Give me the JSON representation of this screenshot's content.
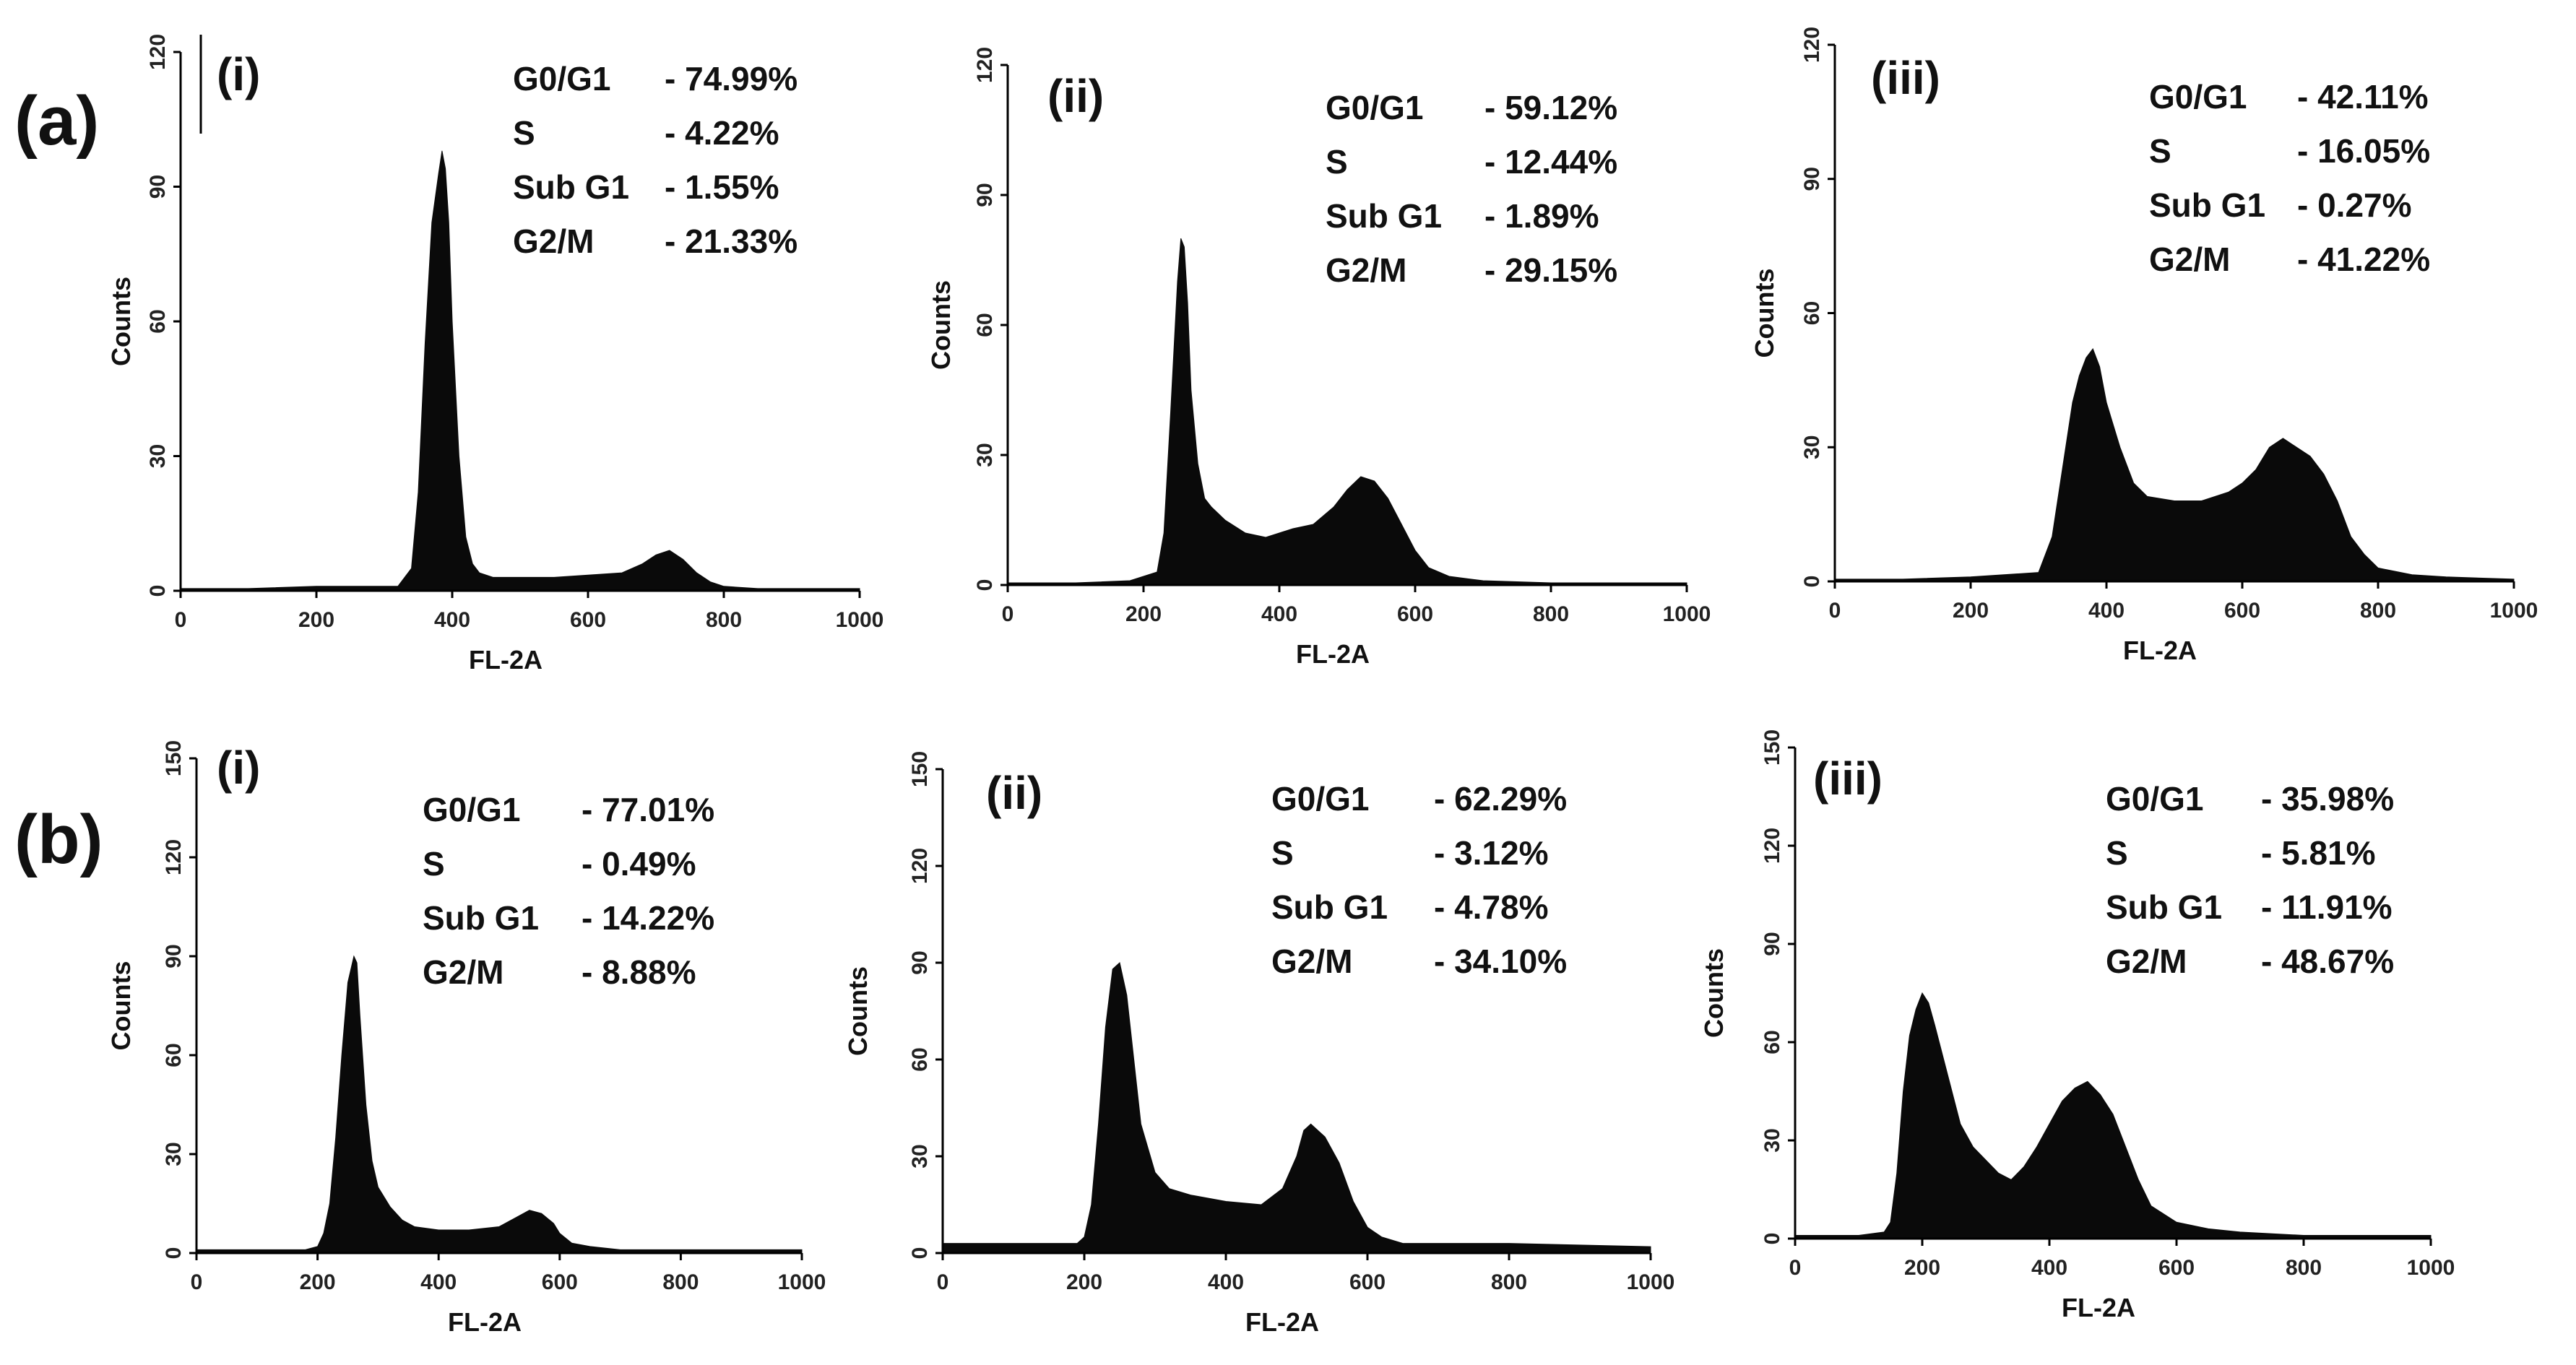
{
  "figure": {
    "row_labels": [
      "(a)",
      "(b)"
    ]
  },
  "chart_data": [
    {
      "row": "(a)",
      "panel": "(i)",
      "type": "area",
      "xlabel": "FL-2A",
      "ylabel": "Counts",
      "xlim": [
        0,
        1000
      ],
      "ylim": [
        0,
        120
      ],
      "xticks": [
        "0",
        "200",
        "400",
        "600",
        "800",
        "1000"
      ],
      "yticks": [
        "0",
        "30",
        "60",
        "90",
        "120"
      ],
      "stats": [
        {
          "phase": "G0/G1",
          "value": "- 74.99%"
        },
        {
          "phase": "S",
          "value": "- 4.22%"
        },
        {
          "phase": "Sub G1",
          "value": "- 1.55%"
        },
        {
          "phase": "G2/M",
          "value": "- 21.33%"
        }
      ],
      "x": [
        0,
        100,
        200,
        280,
        320,
        340,
        350,
        360,
        370,
        380,
        385,
        390,
        395,
        400,
        410,
        420,
        430,
        440,
        460,
        500,
        550,
        600,
        650,
        680,
        700,
        720,
        740,
        760,
        780,
        800,
        850,
        900,
        1000
      ],
      "y": [
        0.5,
        0.5,
        1,
        1,
        1,
        5,
        22,
        55,
        82,
        93,
        98,
        94,
        82,
        60,
        30,
        12,
        6,
        4,
        3,
        3,
        3,
        3.5,
        4,
        6,
        8,
        9,
        7,
        4,
        2,
        1,
        0.5,
        0.5,
        0.5
      ]
    },
    {
      "row": "(a)",
      "panel": "(ii)",
      "type": "area",
      "xlabel": "FL-2A",
      "ylabel": "Counts",
      "xlim": [
        0,
        1000
      ],
      "ylim": [
        0,
        120
      ],
      "xticks": [
        "0",
        "200",
        "400",
        "600",
        "800",
        "1000"
      ],
      "yticks": [
        "0",
        "30",
        "60",
        "90",
        "120"
      ],
      "stats": [
        {
          "phase": "G0/G1",
          "value": "- 59.12%"
        },
        {
          "phase": "S",
          "value": "- 12.44%"
        },
        {
          "phase": "Sub G1",
          "value": "- 1.89%"
        },
        {
          "phase": "G2/M",
          "value": "- 29.15%"
        }
      ],
      "x": [
        0,
        100,
        180,
        220,
        230,
        240,
        250,
        255,
        260,
        265,
        270,
        280,
        290,
        300,
        320,
        350,
        380,
        400,
        420,
        450,
        480,
        500,
        520,
        540,
        560,
        580,
        600,
        620,
        650,
        700,
        800,
        1000
      ],
      "y": [
        0.5,
        0.5,
        1,
        3,
        12,
        40,
        70,
        80,
        78,
        65,
        45,
        28,
        20,
        18,
        15,
        12,
        11,
        12,
        13,
        14,
        18,
        22,
        25,
        24,
        20,
        14,
        8,
        4,
        2,
        1,
        0.5,
        0.5
      ]
    },
    {
      "row": "(a)",
      "panel": "(iii)",
      "type": "area",
      "xlabel": "FL-2A",
      "ylabel": "Counts",
      "xlim": [
        0,
        1000
      ],
      "ylim": [
        0,
        120
      ],
      "xticks": [
        "0",
        "200",
        "400",
        "600",
        "800",
        "1000"
      ],
      "yticks": [
        "0",
        "30",
        "60",
        "90",
        "120"
      ],
      "stats": [
        {
          "phase": "G0/G1",
          "value": "- 42.11%"
        },
        {
          "phase": "S",
          "value": "- 16.05%"
        },
        {
          "phase": "Sub G1",
          "value": "- 0.27%"
        },
        {
          "phase": "G2/M",
          "value": "- 41.22%"
        }
      ],
      "x": [
        0,
        100,
        200,
        300,
        320,
        340,
        350,
        360,
        370,
        380,
        390,
        400,
        420,
        440,
        460,
        500,
        540,
        580,
        600,
        620,
        640,
        660,
        680,
        700,
        720,
        740,
        760,
        780,
        800,
        850,
        900,
        1000
      ],
      "y": [
        0.5,
        0.5,
        1,
        2,
        10,
        30,
        40,
        46,
        50,
        52,
        48,
        40,
        30,
        22,
        19,
        18,
        18,
        20,
        22,
        25,
        30,
        32,
        30,
        28,
        24,
        18,
        10,
        6,
        3,
        1.5,
        1,
        0.5
      ]
    },
    {
      "row": "(b)",
      "panel": "(i)",
      "type": "area",
      "xlabel": "FL-2A",
      "ylabel": "Counts",
      "xlim": [
        0,
        1000
      ],
      "ylim": [
        0,
        150
      ],
      "xticks": [
        "0",
        "200",
        "400",
        "600",
        "800",
        "1000"
      ],
      "yticks": [
        "0",
        "30",
        "60",
        "90",
        "120",
        "150"
      ],
      "stats": [
        {
          "phase": "G0/G1",
          "value": "- 77.01%"
        },
        {
          "phase": "S",
          "value": "- 0.49%"
        },
        {
          "phase": "Sub G1",
          "value": "- 14.22%"
        },
        {
          "phase": "G2/M",
          "value": "- 8.88%"
        }
      ],
      "x": [
        0,
        100,
        180,
        200,
        210,
        220,
        230,
        240,
        250,
        260,
        265,
        270,
        280,
        290,
        300,
        320,
        340,
        360,
        400,
        450,
        500,
        530,
        550,
        570,
        590,
        600,
        620,
        650,
        700,
        800,
        1000
      ],
      "y": [
        1,
        1,
        1,
        2,
        6,
        15,
        35,
        60,
        82,
        90,
        88,
        72,
        45,
        28,
        20,
        14,
        10,
        8,
        7,
        7,
        8,
        11,
        13,
        12,
        9,
        6,
        3,
        2,
        1,
        1,
        1
      ]
    },
    {
      "row": "(b)",
      "panel": "(ii)",
      "type": "area",
      "xlabel": "FL-2A",
      "ylabel": "Counts",
      "xlim": [
        0,
        1000
      ],
      "ylim": [
        0,
        150
      ],
      "xticks": [
        "0",
        "200",
        "400",
        "600",
        "800",
        "1000"
      ],
      "yticks": [
        "0",
        "30",
        "60",
        "90",
        "120",
        "150"
      ],
      "stats": [
        {
          "phase": "G0/G1",
          "value": "- 62.29%"
        },
        {
          "phase": "S",
          "value": "- 3.12%"
        },
        {
          "phase": "Sub G1",
          "value": "- 4.78%"
        },
        {
          "phase": "G2/M",
          "value": "- 34.10%"
        }
      ],
      "x": [
        0,
        100,
        190,
        200,
        210,
        220,
        230,
        240,
        250,
        260,
        270,
        280,
        300,
        320,
        350,
        400,
        450,
        480,
        500,
        510,
        520,
        540,
        560,
        580,
        600,
        620,
        650,
        700,
        800,
        1000
      ],
      "y": [
        3,
        3,
        3,
        5,
        15,
        40,
        70,
        88,
        90,
        80,
        60,
        40,
        25,
        20,
        18,
        16,
        15,
        20,
        30,
        38,
        40,
        36,
        28,
        16,
        8,
        5,
        3,
        3,
        3,
        2
      ]
    },
    {
      "row": "(b)",
      "panel": "(iii)",
      "type": "area",
      "xlabel": "FL-2A",
      "ylabel": "Counts",
      "xlim": [
        0,
        1000
      ],
      "ylim": [
        0,
        150
      ],
      "xticks": [
        "0",
        "200",
        "400",
        "600",
        "800",
        "1000"
      ],
      "yticks": [
        "0",
        "30",
        "60",
        "90",
        "120",
        "150"
      ],
      "stats": [
        {
          "phase": "G0/G1",
          "value": "- 35.98%"
        },
        {
          "phase": "S",
          "value": "- 5.81%"
        },
        {
          "phase": "Sub G1",
          "value": "- 11.91%"
        },
        {
          "phase": "G2/M",
          "value": "- 48.67%"
        }
      ],
      "x": [
        0,
        100,
        140,
        150,
        160,
        170,
        180,
        190,
        200,
        210,
        220,
        240,
        260,
        280,
        300,
        320,
        340,
        360,
        380,
        400,
        420,
        440,
        460,
        480,
        500,
        520,
        540,
        560,
        600,
        650,
        700,
        800,
        1000
      ],
      "y": [
        1,
        1,
        2,
        5,
        20,
        45,
        62,
        70,
        75,
        72,
        65,
        50,
        35,
        28,
        24,
        20,
        18,
        22,
        28,
        35,
        42,
        46,
        48,
        44,
        38,
        28,
        18,
        10,
        5,
        3,
        2,
        1,
        1
      ]
    }
  ]
}
